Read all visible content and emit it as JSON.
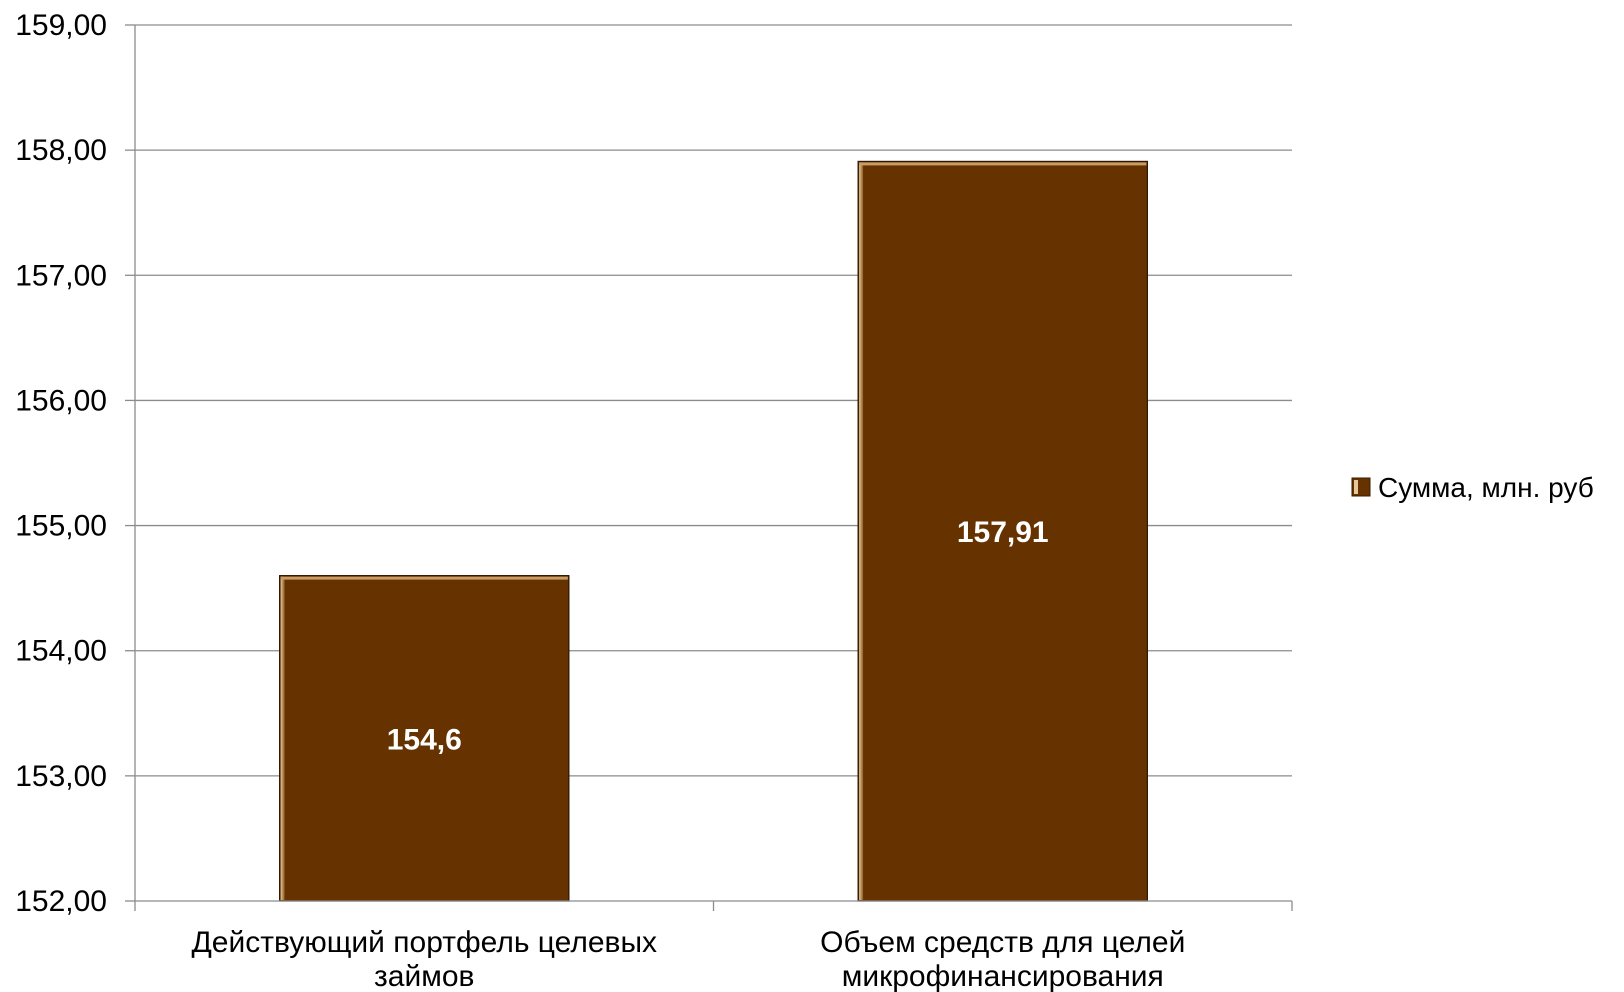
{
  "chart_data": {
    "type": "bar",
    "categories": [
      [
        "Действующий портфель целевых",
        "займов"
      ],
      [
        "Объем средств для целей",
        "микрофинансирования"
      ]
    ],
    "series": [
      {
        "name": "Сумма, млн. руб",
        "values": [
          154.6,
          157.91
        ],
        "data_labels": [
          "154,6",
          "157,91"
        ],
        "color": "#663300"
      }
    ],
    "ylim": [
      152,
      159
    ],
    "yticks": [
      152,
      153,
      154,
      155,
      156,
      157,
      158,
      159
    ],
    "ytick_labels": [
      "152,00",
      "153,00",
      "154,00",
      "155,00",
      "156,00",
      "157,00",
      "158,00",
      "159,00"
    ],
    "grid": true,
    "legend_position": "right"
  }
}
